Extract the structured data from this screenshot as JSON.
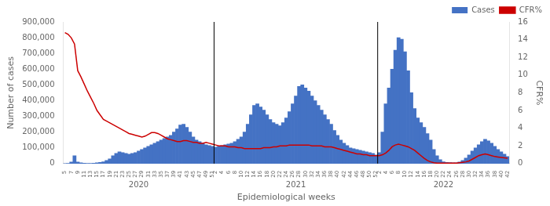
{
  "chart_data": {
    "type": "bar",
    "x_label": "Epidemiological weeks",
    "y_label": "Number of cases",
    "y2_label": "CFR%",
    "categories": [
      "5",
      null,
      "7",
      null,
      "9",
      null,
      "11",
      null,
      "13",
      null,
      "15",
      null,
      "17",
      null,
      "19",
      null,
      "21",
      null,
      "23",
      null,
      "25",
      null,
      "27",
      null,
      "29",
      null,
      "31",
      null,
      "33",
      null,
      "35",
      null,
      "37",
      null,
      "39",
      null,
      "41",
      null,
      "43",
      null,
      "45",
      null,
      "47",
      null,
      "49",
      null,
      "51",
      "2",
      null,
      "4",
      null,
      "6",
      null,
      "8",
      null,
      "10",
      null,
      "12",
      null,
      "14",
      null,
      "16",
      null,
      "18",
      null,
      "20",
      null,
      "22",
      null,
      "24",
      null,
      "26",
      null,
      "28",
      null,
      "30",
      null,
      "32",
      null,
      "34",
      null,
      "36",
      null,
      "38",
      null,
      "40",
      null,
      "42",
      null,
      "44",
      null,
      "46",
      null,
      "48",
      null,
      "50",
      null,
      "52",
      "2",
      null,
      "4",
      null,
      "6",
      null,
      "8",
      null,
      "10",
      null,
      "12",
      null,
      "14",
      null,
      "16",
      null,
      "18",
      null,
      "20",
      null,
      "22",
      null,
      "24",
      null,
      "26",
      null,
      "28",
      null,
      "30",
      null,
      "32",
      null,
      "34",
      null,
      "36",
      null,
      "38",
      null,
      "40",
      null,
      "42"
    ],
    "series": [
      {
        "name": "Cases",
        "type": "bar",
        "color": "#4472C4",
        "values": [
          500,
          2000,
          10000,
          50000,
          10000,
          5000,
          3000,
          2000,
          2000,
          3000,
          5000,
          8000,
          12000,
          20000,
          30000,
          50000,
          65000,
          75000,
          70000,
          65000,
          60000,
          65000,
          70000,
          80000,
          90000,
          100000,
          110000,
          120000,
          130000,
          140000,
          150000,
          160000,
          170000,
          180000,
          200000,
          220000,
          245000,
          250000,
          230000,
          200000,
          170000,
          150000,
          140000,
          130000,
          120000,
          115000,
          110000,
          105000,
          110000,
          115000,
          120000,
          125000,
          130000,
          140000,
          155000,
          170000,
          200000,
          250000,
          310000,
          370000,
          380000,
          360000,
          340000,
          310000,
          280000,
          260000,
          250000,
          240000,
          260000,
          290000,
          330000,
          380000,
          430000,
          490000,
          500000,
          480000,
          460000,
          430000,
          400000,
          370000,
          340000,
          310000,
          280000,
          250000,
          210000,
          180000,
          150000,
          130000,
          115000,
          100000,
          95000,
          90000,
          85000,
          80000,
          75000,
          70000,
          65000,
          55000,
          70000,
          200000,
          380000,
          480000,
          600000,
          720000,
          800000,
          790000,
          710000,
          590000,
          450000,
          350000,
          290000,
          260000,
          230000,
          190000,
          150000,
          90000,
          50000,
          25000,
          12000,
          8000,
          6000,
          5000,
          5000,
          10000,
          20000,
          35000,
          55000,
          80000,
          100000,
          120000,
          140000,
          155000,
          145000,
          130000,
          110000,
          90000,
          75000,
          60000,
          45000
        ]
      },
      {
        "name": "CFR%",
        "type": "line",
        "color": "#CC0000",
        "axis": "y2",
        "values": [
          14.8,
          14.6,
          14.2,
          13.5,
          10.5,
          9.8,
          9.0,
          8.2,
          7.5,
          6.8,
          6.0,
          5.5,
          5.0,
          4.8,
          4.6,
          4.4,
          4.2,
          4.0,
          3.8,
          3.6,
          3.4,
          3.3,
          3.2,
          3.1,
          3.0,
          3.1,
          3.3,
          3.5,
          3.5,
          3.4,
          3.2,
          3.0,
          2.8,
          2.7,
          2.6,
          2.5,
          2.5,
          2.6,
          2.6,
          2.5,
          2.4,
          2.4,
          2.3,
          2.3,
          2.4,
          2.3,
          2.2,
          2.1,
          2.0,
          2.0,
          2.0,
          1.9,
          1.9,
          1.9,
          1.8,
          1.8,
          1.7,
          1.7,
          1.7,
          1.7,
          1.7,
          1.7,
          1.8,
          1.8,
          1.8,
          1.9,
          1.9,
          2.0,
          2.0,
          2.0,
          2.1,
          2.1,
          2.1,
          2.1,
          2.1,
          2.1,
          2.1,
          2.0,
          2.0,
          2.0,
          2.0,
          1.9,
          1.9,
          1.9,
          1.8,
          1.7,
          1.6,
          1.5,
          1.4,
          1.3,
          1.2,
          1.1,
          1.1,
          1.0,
          1.0,
          0.9,
          0.9,
          0.9,
          0.9,
          1.0,
          1.2,
          1.5,
          1.9,
          2.1,
          2.2,
          2.1,
          2.0,
          1.9,
          1.7,
          1.5,
          1.2,
          0.9,
          0.6,
          0.35,
          0.2,
          0.1,
          0.05,
          0.05,
          0.05,
          0.05,
          0.05,
          0.05,
          0.05,
          0.1,
          0.15,
          0.2,
          0.3,
          0.5,
          0.7,
          0.9,
          1.0,
          1.1,
          1.0,
          0.9,
          0.8,
          0.75,
          0.7,
          0.65,
          0.6
        ]
      }
    ],
    "annotations": [
      {
        "text": "2020",
        "span": [
          0,
          46
        ]
      },
      {
        "text": "2021",
        "span": [
          47,
          97
        ]
      },
      {
        "text": "2022",
        "span": [
          98,
          138
        ]
      }
    ],
    "ylim": [
      0,
      900000
    ],
    "yticks": [
      0,
      {
        "value": 100000,
        "label": "100,000"
      },
      {
        "value": 200000,
        "label": "200,000"
      },
      {
        "value": 300000,
        "label": "300,000"
      },
      {
        "value": 400000,
        "label": "400,000"
      },
      {
        "value": 500000,
        "label": "500,000"
      },
      {
        "value": 600000,
        "label": "600,000"
      },
      {
        "value": 700000,
        "label": "700,000"
      },
      {
        "value": 800000,
        "label": "800,000"
      },
      {
        "value": 900000,
        "label": "900,000"
      }
    ],
    "y2lim": [
      0,
      16
    ],
    "y2ticks": [
      0,
      2,
      4,
      6,
      8,
      10,
      12,
      14,
      16
    ],
    "grid": false,
    "legend": "upper right"
  }
}
